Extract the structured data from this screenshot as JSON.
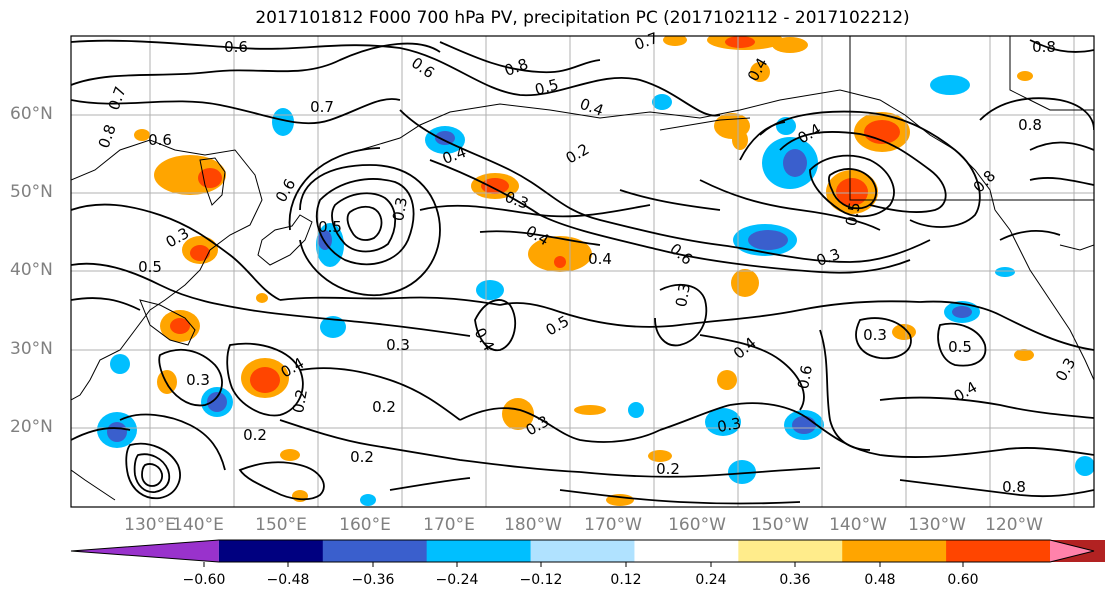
{
  "title": "2017101812 F000 700 hPa PV, precipitation PC (2017102112 - 2017102212)",
  "map": {
    "lat_ticks": [
      "60°N",
      "50°N",
      "40°N",
      "30°N",
      "20°N"
    ],
    "lon_ticks": [
      "130°E",
      "140°E",
      "150°E",
      "160°E",
      "170°E",
      "180°W",
      "170°W",
      "160°W",
      "150°W",
      "140°W",
      "130°W",
      "120°W"
    ],
    "contour_labels": [
      "0.6",
      "0.6",
      "0.8",
      "0.5",
      "0.4",
      "0.7",
      "0.4",
      "0.8",
      "0.7",
      "0.8",
      "0.6",
      "0.7",
      "0.4",
      "0.3",
      "0.2",
      "0.4",
      "0.8",
      "0.5",
      "0.6",
      "0.8",
      "0.3",
      "0.5",
      "0.4",
      "0.4",
      "0.6",
      "0.3",
      "0.5",
      "0.3",
      "0.3",
      "0.4",
      "0.5",
      "0.3",
      "0.4",
      "0.3",
      "0.5",
      "0.6",
      "0.3",
      "0.4",
      "0.2",
      "0.2",
      "0.2",
      "0.3",
      "0.2",
      "0.4",
      "0.3",
      "0.3",
      "0.2",
      "0.8"
    ]
  },
  "colorbar": {
    "colors": [
      "#9932cc",
      "#000080",
      "#3a5fcd",
      "#00bfff",
      "#b0e2ff",
      "#ffffff",
      "#ffec8b",
      "#ffa500",
      "#ff4500",
      "#b22222",
      "#ff82ab"
    ],
    "labels": [
      "−0.60",
      "−0.48",
      "−0.36",
      "−0.24",
      "−0.12",
      "0.12",
      "0.24",
      "0.36",
      "0.48",
      "0.60"
    ]
  }
}
